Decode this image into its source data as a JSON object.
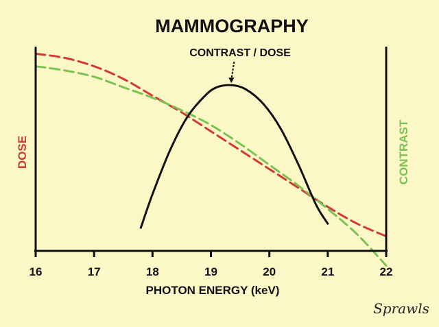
{
  "chart_data": {
    "type": "line",
    "title": "MAMMOGRAPHY",
    "xlabel": "PHOTON ENERGY (keV)",
    "xlim": [
      16,
      22
    ],
    "x_ticks": [
      16,
      17,
      18,
      19,
      20,
      21,
      22
    ],
    "left_axis_label": "DOSE",
    "right_axis_label": "CONTRAST",
    "annotation": "CONTRAST / DOSE",
    "annotation_target_x": 19.35,
    "grid": false,
    "signature": "Sprawls",
    "colors": {
      "dose": "#d03a32",
      "contrast": "#7cc253",
      "contrast_dose": "#111111",
      "background": "#fbf7c6"
    },
    "series": [
      {
        "key": "dose",
        "style": "dashed",
        "x": [
          16,
          16.5,
          17,
          17.5,
          18,
          18.5,
          19,
          19.5,
          20,
          20.5,
          21,
          21.5,
          22
        ],
        "y": [
          0.94,
          0.92,
          0.88,
          0.82,
          0.74,
          0.66,
          0.57,
          0.48,
          0.39,
          0.3,
          0.21,
          0.13,
          0.07
        ]
      },
      {
        "key": "contrast",
        "style": "dashed",
        "x": [
          16,
          16.5,
          17,
          17.5,
          18,
          18.5,
          19,
          19.5,
          20,
          20.5,
          21,
          21.5,
          22
        ],
        "y": [
          0.88,
          0.86,
          0.83,
          0.78,
          0.73,
          0.67,
          0.6,
          0.51,
          0.41,
          0.31,
          0.2,
          0.08,
          -0.07
        ]
      },
      {
        "key": "contrast_dose",
        "style": "solid",
        "x": [
          17.8,
          18.0,
          18.3,
          18.6,
          18.9,
          19.1,
          19.35,
          19.6,
          19.9,
          20.2,
          20.5,
          20.8,
          21.0
        ],
        "y": [
          0.11,
          0.27,
          0.48,
          0.64,
          0.74,
          0.78,
          0.79,
          0.77,
          0.7,
          0.58,
          0.41,
          0.22,
          0.13
        ]
      }
    ]
  }
}
